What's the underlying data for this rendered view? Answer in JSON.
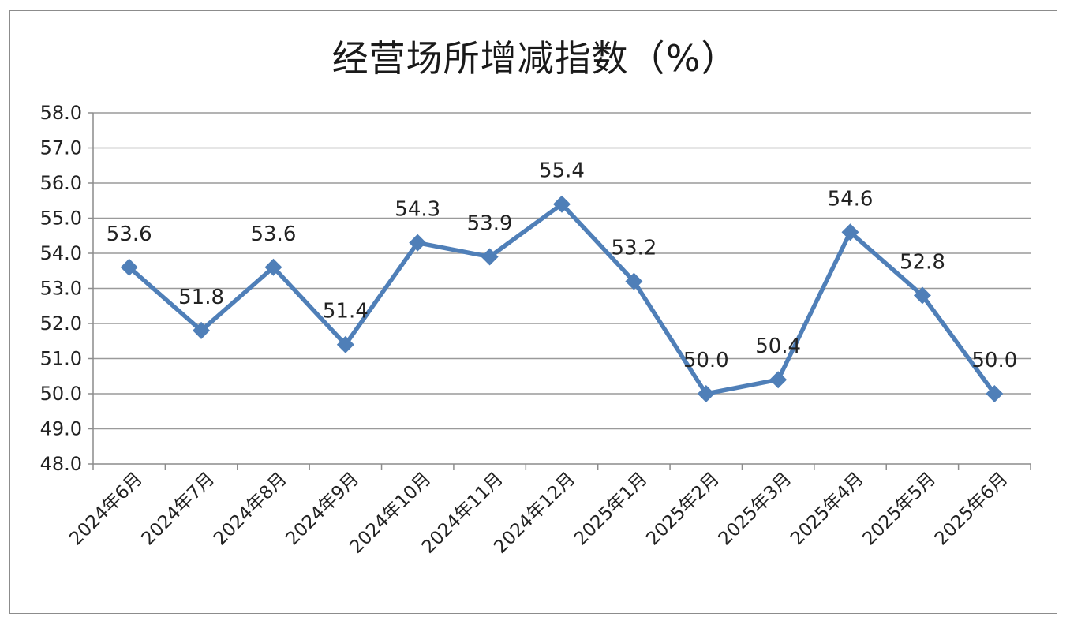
{
  "chart_data": {
    "type": "line",
    "title": "经营场所增减指数（%）",
    "xlabel": "",
    "ylabel": "",
    "categories": [
      "2024年6月",
      "2024年7月",
      "2024年8月",
      "2024年9月",
      "2024年10月",
      "2024年11月",
      "2024年12月",
      "2025年1月",
      "2025年2月",
      "2025年3月",
      "2025年4月",
      "2025年5月",
      "2025年6月"
    ],
    "series": [
      {
        "values": [
          53.6,
          51.8,
          53.6,
          51.4,
          54.3,
          53.9,
          55.4,
          53.2,
          50.0,
          50.4,
          54.6,
          52.8,
          50.0
        ],
        "labels": [
          "53.6",
          "51.8",
          "53.6",
          "51.4",
          "54.3",
          "53.9",
          "55.4",
          "53.2",
          "50.0",
          "50.4",
          "54.6",
          "52.8",
          "50.0"
        ],
        "color": "#4f7fb8",
        "marker": "diamond"
      }
    ],
    "ylim": [
      48.0,
      58.0
    ],
    "yticks": [
      "48.0",
      "49.0",
      "50.0",
      "51.0",
      "52.0",
      "53.0",
      "54.0",
      "55.0",
      "56.0",
      "57.0",
      "58.0"
    ],
    "grid": true,
    "legend": "none",
    "colors": {
      "line": "#4f7fb8",
      "grid": "#9a9a9a",
      "axis": "#8c8c8c"
    }
  }
}
